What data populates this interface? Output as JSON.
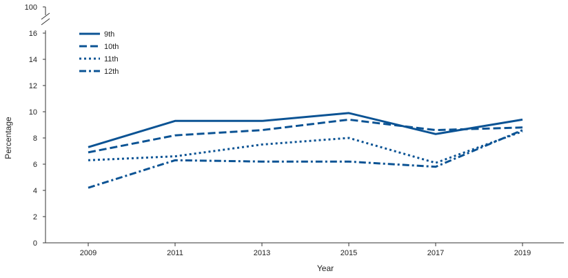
{
  "chart_data": {
    "type": "line",
    "title": "",
    "xlabel": "Year",
    "ylabel": "Percentage",
    "x": [
      2009,
      2011,
      2013,
      2015,
      2017,
      2019
    ],
    "x_ticks": [
      "2009",
      "2011",
      "2013",
      "2015",
      "2017",
      "2019"
    ],
    "y_ticks": [
      "0",
      "2",
      "4",
      "6",
      "8",
      "10",
      "12",
      "14",
      "16",
      "100"
    ],
    "ylim": [
      0,
      16
    ],
    "axis_break": {
      "from": 16,
      "to": 100
    },
    "grid": false,
    "legend_position": "top-left",
    "color": "#0b5394",
    "series": [
      {
        "name": "9th",
        "style": "solid",
        "values": [
          7.3,
          9.3,
          9.3,
          9.9,
          8.3,
          9.4
        ]
      },
      {
        "name": "10th",
        "style": "dashed",
        "values": [
          6.9,
          8.2,
          8.6,
          9.4,
          8.6,
          8.8
        ]
      },
      {
        "name": "11th",
        "style": "dotted",
        "values": [
          6.3,
          6.6,
          7.5,
          8.0,
          6.1,
          8.5
        ]
      },
      {
        "name": "12th",
        "style": "dash-dot",
        "values": [
          4.2,
          6.3,
          6.2,
          6.2,
          5.8,
          8.6
        ]
      }
    ]
  }
}
